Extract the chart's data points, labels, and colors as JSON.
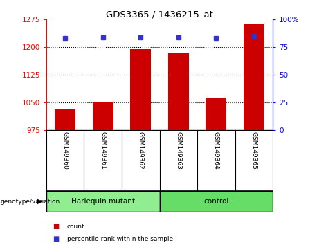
{
  "title": "GDS3365 / 1436215_at",
  "samples": [
    "GSM149360",
    "GSM149361",
    "GSM149362",
    "GSM149363",
    "GSM149364",
    "GSM149365"
  ],
  "count_values": [
    1030,
    1052,
    1195,
    1185,
    1063,
    1265
  ],
  "percentile_values": [
    83,
    84,
    84,
    84,
    83,
    85
  ],
  "ylim_left": [
    975,
    1275
  ],
  "ylim_right": [
    0,
    100
  ],
  "yticks_left": [
    975,
    1050,
    1125,
    1200,
    1275
  ],
  "yticks_right": [
    0,
    25,
    50,
    75,
    100
  ],
  "bar_color": "#cc0000",
  "dot_color": "#3333cc",
  "group_harlequin_color": "#90ee90",
  "group_control_color": "#66dd66",
  "xticklabel_area_color": "#c8c8c8",
  "legend_count_label": "count",
  "legend_percentile_label": "percentile rank within the sample",
  "genotype_label": "genotype/variation",
  "bar_width": 0.55,
  "base_value": 975,
  "grid_values": [
    1050,
    1125,
    1200
  ]
}
